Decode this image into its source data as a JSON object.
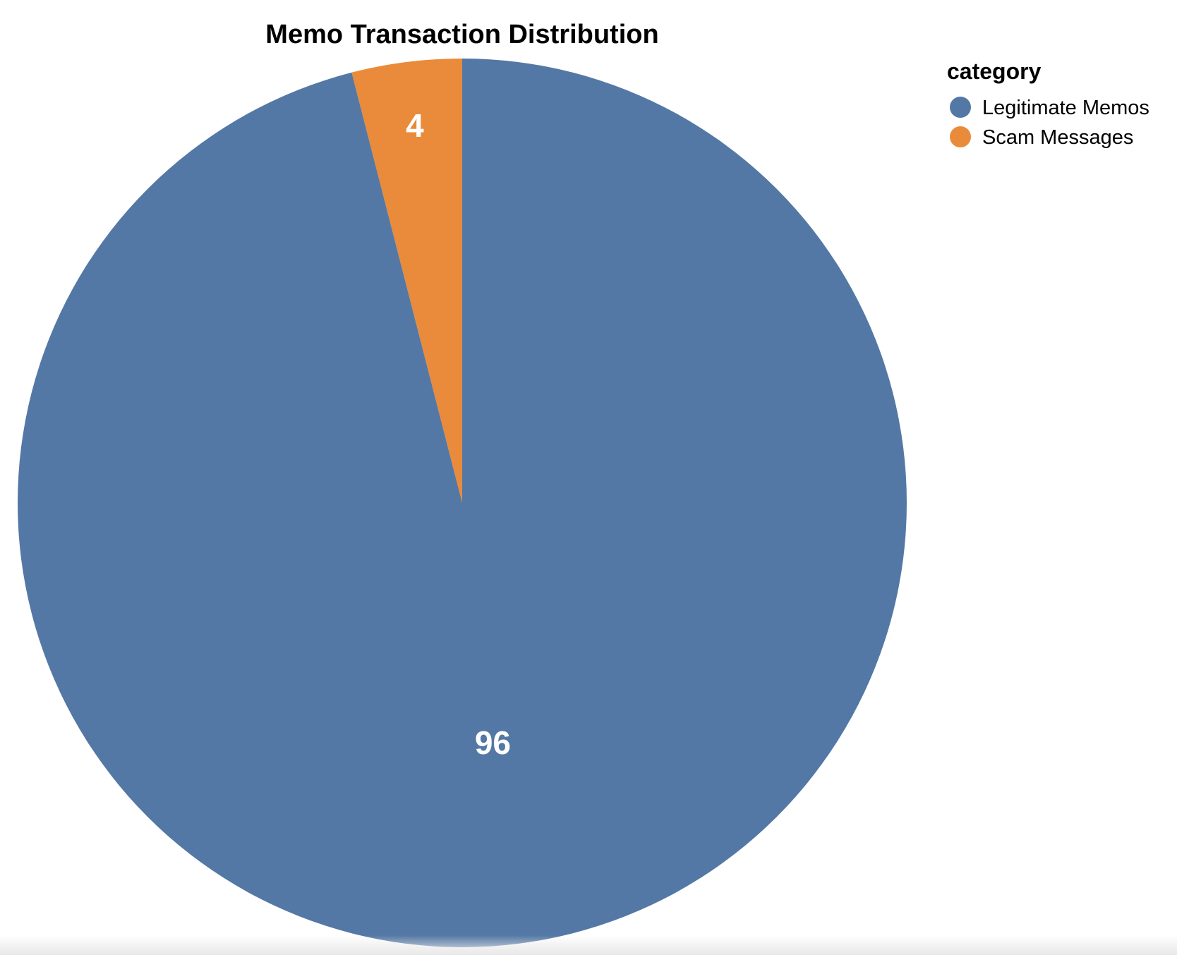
{
  "chart_data": {
    "type": "pie",
    "title": "Memo Transaction Distribution",
    "legend": {
      "title": "category",
      "placement": "top-right"
    },
    "slices": [
      {
        "category": "Legitimate Memos",
        "value": 96,
        "color": "#5378a5"
      },
      {
        "category": "Scam Messages",
        "value": 4,
        "color": "#e98b3a"
      }
    ]
  }
}
